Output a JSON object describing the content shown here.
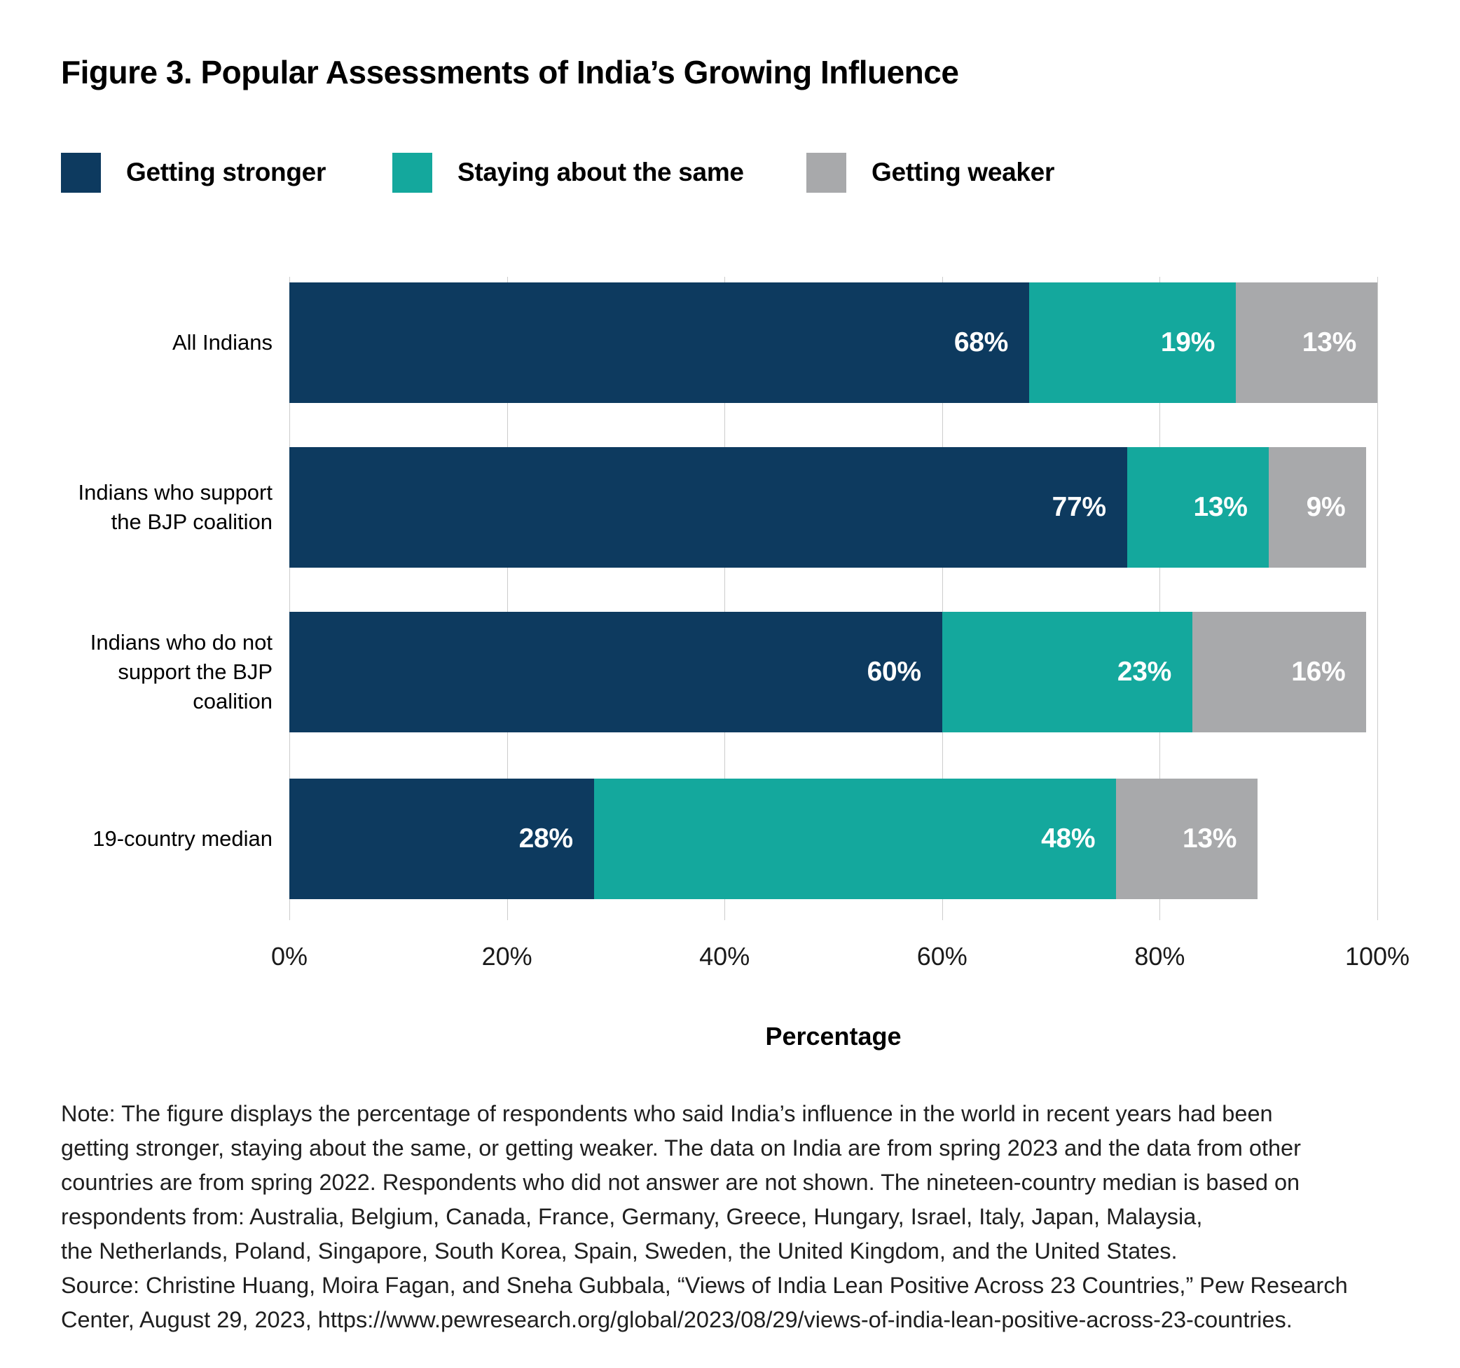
{
  "title": "Figure 3. Popular Assessments of India’s Growing Influence",
  "chart_data": {
    "type": "bar",
    "orientation": "horizontal-stacked",
    "title": "Figure 3. Popular Assessments of India’s Growing Influence",
    "categories": [
      "All Indians",
      "Indians who support\nthe BJP coalition",
      "Indians who do not\nsupport the BJP coalition",
      "19-country median"
    ],
    "series": [
      {
        "name": "Getting stronger",
        "color": "#0d3a5f",
        "values": [
          68,
          77,
          60,
          28
        ]
      },
      {
        "name": "Staying about the same",
        "color": "#14a89d",
        "values": [
          19,
          13,
          23,
          48
        ]
      },
      {
        "name": "Getting weaker",
        "color": "#a8a9ab",
        "values": [
          13,
          9,
          16,
          13
        ]
      }
    ],
    "xlabel": "Percentage",
    "ylabel": "",
    "x_ticks": [
      "0%",
      "20%",
      "40%",
      "60%",
      "80%",
      "100%"
    ],
    "xlim": [
      0,
      100
    ],
    "grid": true,
    "gridline_color": "#cccccc",
    "legend_position": "top",
    "value_suffix": "%",
    "bar_label_color": "#ffffff"
  },
  "note": {
    "lines": [
      "Note: The figure displays the percentage of respondents who said India’s influence in the world in recent years had been",
      "getting stronger, staying about the same, or getting weaker. The data on India are from spring 2023 and the data from other",
      "countries are from spring 2022. Respondents who did not answer are not shown. The nineteen-country median is based on",
      "respondents from: Australia, Belgium, Canada, France, Germany, Greece, Hungary, Israel, Italy, Japan, Malaysia,",
      "the Netherlands, Poland, Singapore, South Korea, Spain, Sweden, the United Kingdom, and the United States.",
      "Source: Christine Huang, Moira Fagan, and Sneha Gubbala, “Views of India Lean Positive Across 23 Countries,” Pew Research",
      "Center, August 29, 2023, https://www.pewresearch.org/global/2023/08/29/views-of-india-lean-positive-across-23-countries."
    ]
  }
}
